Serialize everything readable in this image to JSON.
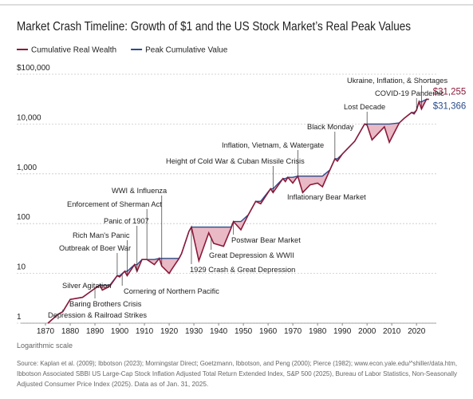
{
  "chart_data": {
    "type": "line",
    "title": "Market Crash Timeline: Growth of $1 and the US Stock Market’s Real Peak Values",
    "log_scale": true,
    "grid": true,
    "x": [
      1871,
      1875,
      1877,
      1880,
      1885,
      1890,
      1892,
      1893,
      1896,
      1899,
      1900,
      1902,
      1903,
      1906,
      1907,
      1909,
      1911,
      1914,
      1916,
      1917,
      1920,
      1921,
      1924,
      1925,
      1928,
      1929,
      1932,
      1936,
      1938,
      1942,
      1945,
      1946,
      1949,
      1952,
      1955,
      1957,
      1961,
      1962,
      1966,
      1967,
      1968,
      1970,
      1972,
      1974,
      1977,
      1980,
      1982,
      1985,
      1987,
      1988,
      1990,
      1995,
      1999,
      2000,
      2002,
      2007,
      2009,
      2013,
      2015,
      2018,
      2019,
      2020,
      2021,
      2022,
      2024,
      2025
    ],
    "series": [
      {
        "name": "Cumulative Real Wealth",
        "color": "#8b1a3a",
        "values": [
          1,
          1.5,
          1.7,
          3,
          3.3,
          5,
          5.8,
          4.6,
          5.5,
          9,
          8.5,
          11,
          9,
          15,
          11,
          19,
          19,
          15,
          20,
          14,
          10,
          12,
          20,
          25,
          70,
          85,
          18,
          65,
          40,
          35,
          80,
          110,
          75,
          150,
          280,
          250,
          500,
          420,
          800,
          700,
          850,
          650,
          900,
          420,
          600,
          650,
          550,
          1200,
          2000,
          1800,
          2500,
          4500,
          10000,
          9500,
          4800,
          8800,
          4300,
          10500,
          13000,
          17000,
          16000,
          19000,
          28000,
          20000,
          31366,
          31255
        ],
        "value_labels": [
          null,
          null,
          null,
          null,
          null,
          null,
          null,
          null,
          null,
          null,
          null,
          null,
          null,
          null,
          null,
          null,
          null,
          null,
          null,
          null,
          null,
          null,
          null,
          null,
          null,
          null,
          null,
          null,
          null,
          null,
          null,
          null,
          null,
          null,
          null,
          null,
          null,
          null,
          null,
          null,
          null,
          null,
          null,
          null,
          null,
          null,
          null,
          null,
          null,
          null,
          null,
          null,
          null,
          null,
          null,
          null,
          null,
          null,
          null,
          null,
          null,
          null,
          null,
          null,
          null,
          "$31,255"
        ]
      },
      {
        "name": "Peak Cumulative Value",
        "color": "#2a4d8c",
        "values": [
          1,
          1.5,
          1.7,
          3,
          3.3,
          5,
          5.8,
          5.8,
          5.8,
          9,
          9,
          11,
          11,
          15,
          15,
          19,
          19,
          19,
          20,
          20,
          20,
          20,
          20,
          25,
          70,
          85,
          85,
          85,
          85,
          85,
          85,
          110,
          110,
          150,
          280,
          280,
          500,
          500,
          800,
          800,
          850,
          850,
          900,
          900,
          900,
          900,
          900,
          1200,
          2000,
          2000,
          2500,
          4500,
          10000,
          10000,
          10000,
          10000,
          10000,
          10500,
          13000,
          17000,
          17000,
          19000,
          28000,
          28000,
          31366,
          31366
        ],
        "value_labels": [
          null,
          null,
          null,
          null,
          null,
          null,
          null,
          null,
          null,
          null,
          null,
          null,
          null,
          null,
          null,
          null,
          null,
          null,
          null,
          null,
          null,
          null,
          null,
          null,
          null,
          null,
          null,
          null,
          null,
          null,
          null,
          null,
          null,
          null,
          null,
          null,
          null,
          null,
          null,
          null,
          null,
          null,
          null,
          null,
          null,
          null,
          null,
          null,
          null,
          null,
          null,
          null,
          null,
          null,
          null,
          null,
          null,
          null,
          null,
          null,
          null,
          null,
          null,
          null,
          null,
          "$31,366"
        ]
      }
    ],
    "xlim": [
      1860,
      2028
    ],
    "xticks": [
      1870,
      1880,
      1890,
      1900,
      1910,
      1920,
      1930,
      1940,
      1950,
      1960,
      1970,
      1980,
      1990,
      2000,
      2010,
      2020
    ],
    "ylim": [
      1,
      100000
    ],
    "yticks": [
      {
        "value": 1,
        "label": "1"
      },
      {
        "value": 10,
        "label": "10"
      },
      {
        "value": 100,
        "label": "100"
      },
      {
        "value": 1000,
        "label": "1,000"
      },
      {
        "value": 10000,
        "label": "10,000"
      },
      {
        "value": 100000,
        "label": "$100,000"
      }
    ],
    "annotations": [
      {
        "text": "Depression & Railroad Strikes",
        "year": 1877
      },
      {
        "text": "Baring Brothers Crisis",
        "year": 1890
      },
      {
        "text": "Silver Agitation",
        "year": 1893
      },
      {
        "text": "Outbreak of Boer War",
        "year": 1899
      },
      {
        "text": "Rich Man's Panic",
        "year": 1903
      },
      {
        "text": "Panic of 1907",
        "year": 1907
      },
      {
        "text": "Enforcement of Sherman Act",
        "year": 1911
      },
      {
        "text": "WWI & Influenza",
        "year": 1917
      },
      {
        "text": "Cornering of Northern Pacific",
        "year": 1901
      },
      {
        "text": "1929 Crash & Great Depression",
        "year": 1929
      },
      {
        "text": "Great Depression & WWII",
        "year": 1937
      },
      {
        "text": "Postwar Bear Market",
        "year": 1946
      },
      {
        "text": "Height of Cold War & Cuban Missile Crisis",
        "year": 1962
      },
      {
        "text": "Inflation, Vietnam, & Watergate",
        "year": 1972
      },
      {
        "text": "Inflationary Bear Market",
        "year": 1974
      },
      {
        "text": "Black Monday",
        "year": 1987
      },
      {
        "text": "Lost Decade",
        "year": 2000
      },
      {
        "text": "COVID-19 Pandemic",
        "year": 2020
      },
      {
        "text": "Ukraine, Inflation, & Shortages",
        "year": 2022
      }
    ],
    "note": "Logarithmic scale",
    "source": [
      "Source: Kaplan et al. (2009); Ibbotson (2023); Morningstar Direct; Goetzmann, Ibbotson, and Peng (2000); Pierce (1982); www.econ.yale.edu/^shiller/data.htm,",
      "Ibbotson Associated SBBI US Large-Cap Stock Inflation Adjusted Total Return Extended Index, S&P 500 (2025), Bureau of Labor Statistics, Non-Seasonally",
      "Adjusted Consumer Price Index (2025). Data as of Jan. 31, 2025."
    ]
  }
}
